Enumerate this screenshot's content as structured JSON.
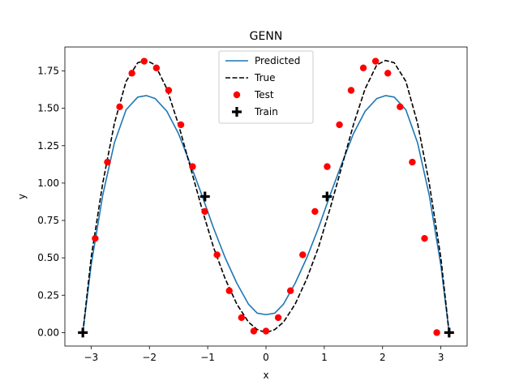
{
  "chart_data": {
    "type": "line",
    "title": "GENN",
    "xlabel": "x",
    "ylabel": "y",
    "xlim": [
      -3.45,
      3.45
    ],
    "ylim": [
      -0.09,
      1.91
    ],
    "xticks": [
      -3,
      -2,
      -1,
      0,
      1,
      2,
      3
    ],
    "xtick_labels": [
      "−3",
      "−2",
      "−1",
      "0",
      "1",
      "2",
      "3"
    ],
    "yticks": [
      0.0,
      0.25,
      0.5,
      0.75,
      1.0,
      1.25,
      1.5,
      1.75
    ],
    "ytick_labels": [
      "0.00",
      "0.25",
      "0.50",
      "0.75",
      "1.00",
      "1.25",
      "1.50",
      "1.75"
    ],
    "grid": false,
    "legend_position": "top-center",
    "series": [
      {
        "name": "Predicted",
        "style": "line",
        "color": "#1f77b4",
        "x": [
          -3.1416,
          -3.0,
          -2.8,
          -2.6,
          -2.4,
          -2.2,
          -2.05,
          -1.9,
          -1.7,
          -1.5,
          -1.3,
          -1.1,
          -0.9,
          -0.7,
          -0.5,
          -0.3,
          -0.15,
          0.0,
          0.15,
          0.3,
          0.5,
          0.7,
          0.9,
          1.1,
          1.3,
          1.5,
          1.7,
          1.9,
          2.05,
          2.2,
          2.4,
          2.6,
          2.8,
          3.0,
          3.1416
        ],
        "y": [
          0.0,
          0.45,
          0.92,
          1.27,
          1.49,
          1.575,
          1.585,
          1.565,
          1.48,
          1.33,
          1.13,
          0.92,
          0.7,
          0.5,
          0.33,
          0.19,
          0.13,
          0.12,
          0.13,
          0.19,
          0.33,
          0.5,
          0.7,
          0.92,
          1.13,
          1.33,
          1.48,
          1.565,
          1.585,
          1.575,
          1.49,
          1.27,
          0.92,
          0.45,
          0.0
        ]
      },
      {
        "name": "True",
        "style": "dashed",
        "color": "#000000",
        "x": [
          -3.1416,
          -3.0,
          -2.8,
          -2.6,
          -2.4,
          -2.2,
          -2.05,
          -1.9,
          -1.7,
          -1.5,
          -1.3,
          -1.1,
          -0.9,
          -0.7,
          -0.5,
          -0.3,
          -0.15,
          0.0,
          0.15,
          0.3,
          0.5,
          0.7,
          0.9,
          1.1,
          1.3,
          1.5,
          1.7,
          1.9,
          2.05,
          2.2,
          2.4,
          2.6,
          2.8,
          3.0,
          3.1416
        ],
        "y": [
          0.0,
          0.5,
          1.0,
          1.4,
          1.68,
          1.805,
          1.82,
          1.79,
          1.63,
          1.39,
          1.11,
          0.83,
          0.57,
          0.36,
          0.19,
          0.07,
          0.02,
          0.0,
          0.02,
          0.07,
          0.19,
          0.36,
          0.57,
          0.83,
          1.11,
          1.39,
          1.63,
          1.79,
          1.82,
          1.805,
          1.68,
          1.4,
          1.0,
          0.5,
          0.0
        ]
      },
      {
        "name": "Test",
        "style": "markers-circle",
        "color": "#ff0000",
        "x": [
          -2.93,
          -2.72,
          -2.51,
          -2.3,
          -2.09,
          -1.88,
          -1.67,
          -1.46,
          -1.26,
          -1.05,
          -0.84,
          -0.63,
          -0.42,
          -0.21,
          0.0,
          0.21,
          0.42,
          0.63,
          0.84,
          1.05,
          1.26,
          1.46,
          1.67,
          1.88,
          2.09,
          2.3,
          2.51,
          2.72,
          2.93
        ],
        "y": [
          0.63,
          1.14,
          1.51,
          1.735,
          1.815,
          1.77,
          1.62,
          1.39,
          1.11,
          0.81,
          0.52,
          0.28,
          0.1,
          0.01,
          0.01,
          0.1,
          0.28,
          0.52,
          0.81,
          1.11,
          1.39,
          1.62,
          1.77,
          1.815,
          1.735,
          1.51,
          1.14,
          0.63,
          0.0
        ]
      },
      {
        "name": "Train",
        "style": "markers-plus",
        "color": "#000000",
        "x": [
          -3.1416,
          -1.0472,
          1.0472,
          3.1416
        ],
        "y": [
          0.0,
          0.91,
          0.91,
          0.0
        ]
      }
    ]
  }
}
